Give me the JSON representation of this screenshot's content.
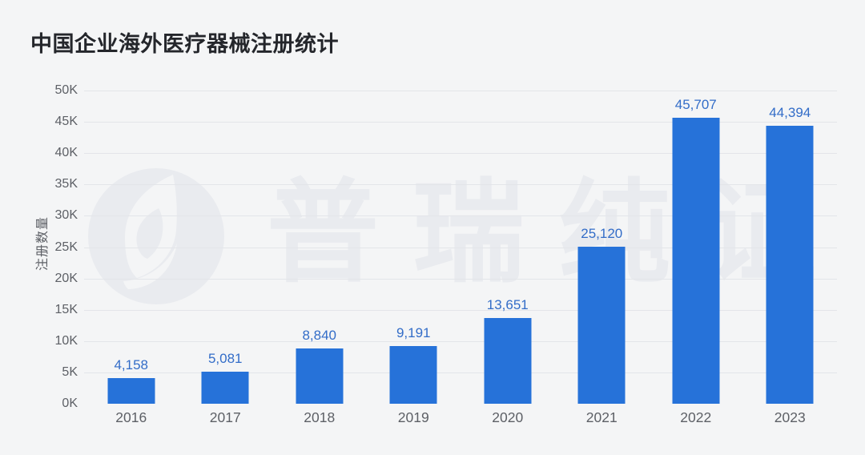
{
  "page": {
    "title": "中国企业海外医疗器械注册统计"
  },
  "chart_data": {
    "type": "bar",
    "title": "中国企业海外医疗器械注册统计",
    "categories": [
      "2016",
      "2017",
      "2018",
      "2019",
      "2020",
      "2021",
      "2022",
      "2023"
    ],
    "values": [
      4158,
      5081,
      8840,
      9191,
      13651,
      25120,
      45707,
      44394
    ],
    "value_labels": [
      "4,158",
      "5,081",
      "8,840",
      "9,191",
      "13,651",
      "25,120",
      "45,707",
      "44,394"
    ],
    "xlabel": "",
    "ylabel": "注册数量",
    "ylim": [
      0,
      50000
    ],
    "yticks": [
      0,
      5000,
      10000,
      15000,
      20000,
      25000,
      30000,
      35000,
      40000,
      45000,
      50000
    ],
    "ytick_labels": [
      "0K",
      "5K",
      "10K",
      "15K",
      "20K",
      "25K",
      "30K",
      "35K",
      "40K",
      "45K",
      "50K"
    ],
    "grid": true,
    "legend": false
  },
  "watermark": {
    "text": "普瑞纯证",
    "logo": "leaf-circle-logo"
  },
  "colors": {
    "background": "#f4f5f6",
    "bar": "#2672d9",
    "value_label": "#336dc8",
    "axis_text": "#5d6066",
    "title_text": "#24262b",
    "gridline": "#e3e5e9",
    "watermark": "#e9ebef"
  }
}
